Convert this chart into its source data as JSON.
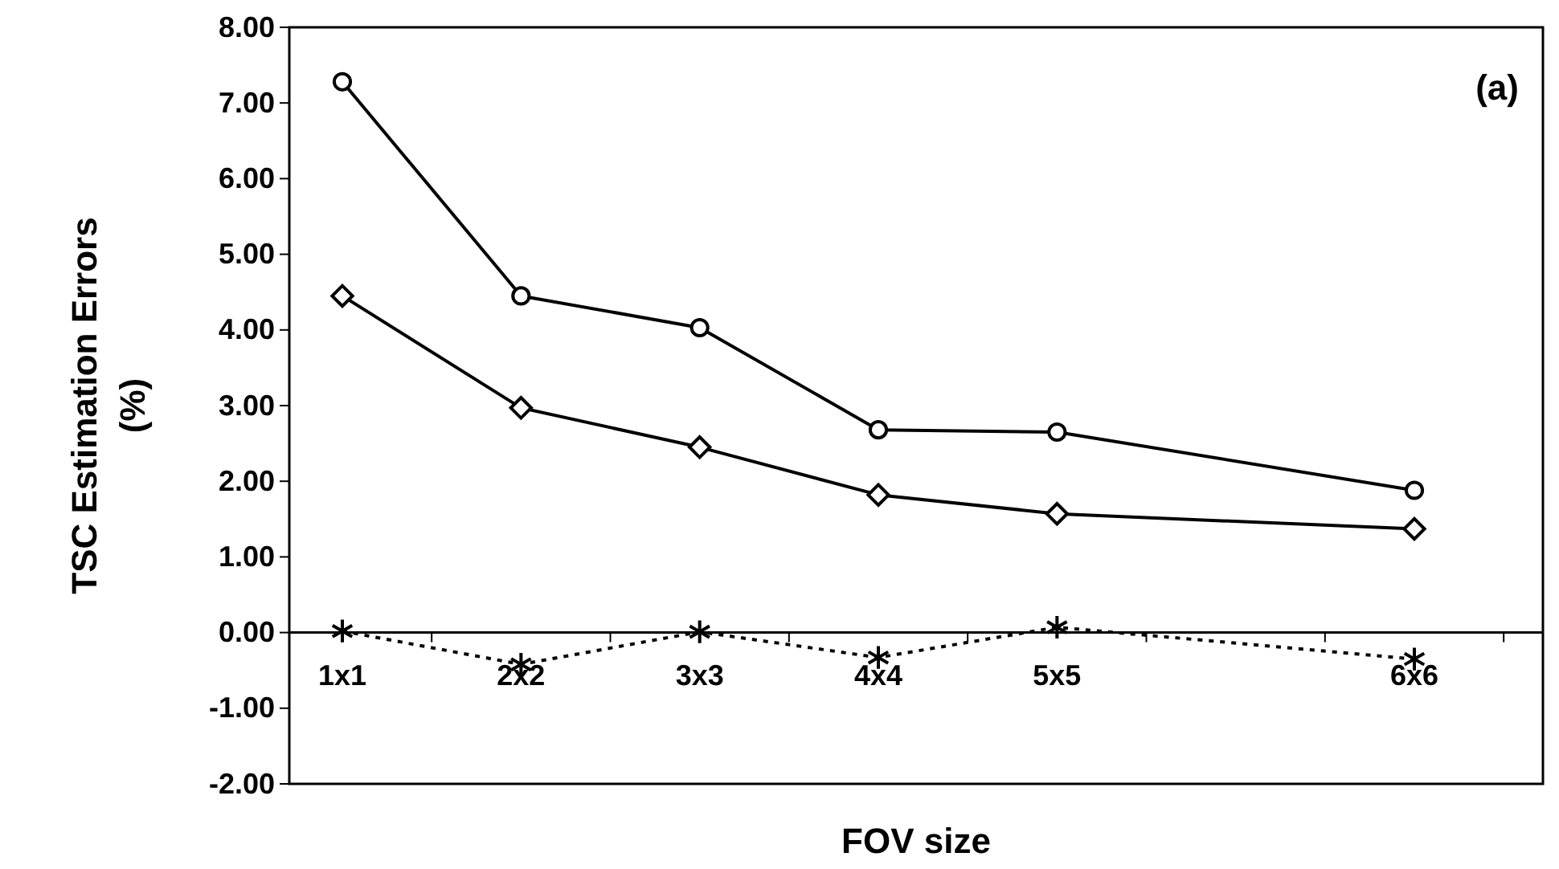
{
  "chart_data": {
    "type": "line",
    "xlabel": "FOV size",
    "ylabel": "TSC Estimation Errors (%)",
    "categories": [
      "1x1",
      "2x2",
      "3x3",
      "4x4",
      "5x5",
      null,
      "6x6"
    ],
    "series": [
      {
        "color": "#000000",
        "marker": "circle",
        "line_style": "solid",
        "values": [
          7.28,
          4.45,
          4.03,
          2.68,
          2.65,
          null,
          1.88
        ]
      },
      {
        "color": "#000000",
        "marker": "diamond",
        "line_style": "solid",
        "values": [
          4.45,
          2.97,
          2.45,
          1.82,
          1.57,
          null,
          1.37
        ]
      },
      {
        "color": "#000000",
        "marker": "cross",
        "line_style": "dotted",
        "values": [
          0.02,
          -0.42,
          0.01,
          -0.33,
          0.07,
          null,
          -0.35
        ]
      }
    ],
    "ylim": [
      -2,
      8
    ],
    "yticks": [
      {
        "value": -2,
        "label": "-2.00"
      },
      {
        "value": -1,
        "label": "-1.00"
      },
      {
        "value": 0,
        "label": "0.00"
      },
      {
        "value": 1,
        "label": "1.00"
      },
      {
        "value": 2,
        "label": "2.00"
      },
      {
        "value": 3,
        "label": "3.00"
      },
      {
        "value": 4,
        "label": "4.00"
      },
      {
        "value": 5,
        "label": "5.00"
      },
      {
        "value": 6,
        "label": "6.00"
      },
      {
        "value": 7,
        "label": "7.00"
      },
      {
        "value": 8,
        "label": "8.00"
      }
    ],
    "annotations": [
      "(a)"
    ],
    "grid": false
  }
}
